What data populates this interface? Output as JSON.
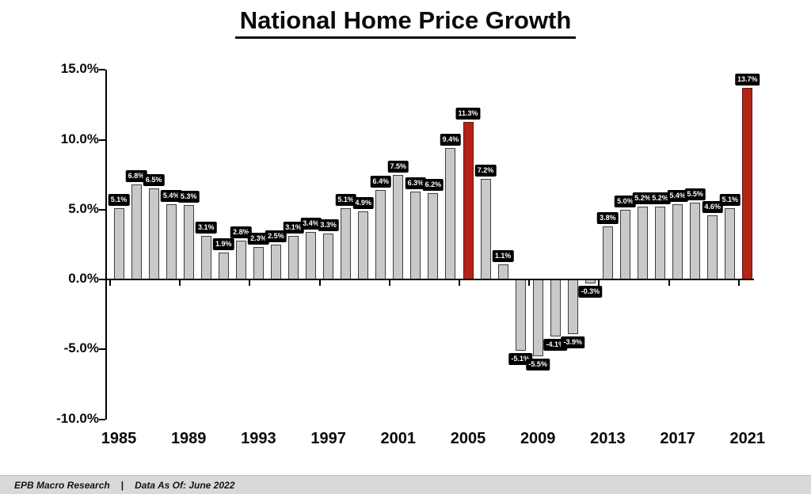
{
  "title": "National Home Price Growth",
  "footer": {
    "source": "EPB Macro Research",
    "separator": "|",
    "as_of": "Data As Of: June 2022"
  },
  "chart_data": {
    "type": "bar",
    "title": "National Home Price Growth",
    "xlabel": "",
    "ylabel": "",
    "ylim": [
      -10,
      15
    ],
    "grid": false,
    "legend": false,
    "bar_color": "#c9c9c9",
    "bar_border_color": "#3d3d3d",
    "highlight_color": "#b22318",
    "label_box_color": "#000000",
    "label_text_color": "#ffffff",
    "highlight_years": [
      2005,
      2021
    ],
    "years": [
      1985,
      1986,
      1987,
      1988,
      1989,
      1990,
      1991,
      1992,
      1993,
      1994,
      1995,
      1996,
      1997,
      1998,
      1999,
      2000,
      2001,
      2002,
      2003,
      2004,
      2005,
      2006,
      2007,
      2008,
      2009,
      2010,
      2011,
      2012,
      2013,
      2014,
      2015,
      2016,
      2017,
      2018,
      2019,
      2020,
      2021
    ],
    "values": [
      5.1,
      6.8,
      6.5,
      5.4,
      5.3,
      3.1,
      1.9,
      2.8,
      2.3,
      2.5,
      3.1,
      3.4,
      3.3,
      5.1,
      4.9,
      6.4,
      7.5,
      6.3,
      6.2,
      9.4,
      11.3,
      7.2,
      1.1,
      -5.1,
      -5.5,
      -4.1,
      -3.9,
      -0.3,
      3.8,
      5.0,
      5.2,
      5.2,
      5.4,
      5.5,
      4.6,
      5.1,
      13.7
    ],
    "value_labels": [
      "5.1%",
      "6.8%",
      "6.5%",
      "5.4%",
      "5.3%",
      "3.1%",
      "1.9%",
      "2.8%",
      "2.3%",
      "2.5%",
      "3.1%",
      "3.4%",
      "3.3%",
      "5.1%",
      "4.9%",
      "6.4%",
      "7.5%",
      "6.3%",
      "6.2%",
      "9.4%",
      "11.3%",
      "7.2%",
      "1.1%",
      "-5.1%",
      "-5.5%",
      "-4.1%",
      "-3.9%",
      "-0.3%",
      "3.8%",
      "5.0%",
      "5.2%",
      "5.2%",
      "5.4%",
      "5.5%",
      "4.6%",
      "5.1%",
      "13.7%"
    ],
    "y_ticks": [
      {
        "value": 15,
        "label": "15.0%"
      },
      {
        "value": 10,
        "label": "10.0%"
      },
      {
        "value": 5,
        "label": "5.0%"
      },
      {
        "value": 0,
        "label": "0.0%"
      },
      {
        "value": -5,
        "label": "-5.0%"
      },
      {
        "value": -10,
        "label": "-10.0%"
      }
    ],
    "x_tick_years": [
      1985,
      1989,
      1993,
      1997,
      2001,
      2005,
      2009,
      2013,
      2017,
      2021
    ]
  }
}
